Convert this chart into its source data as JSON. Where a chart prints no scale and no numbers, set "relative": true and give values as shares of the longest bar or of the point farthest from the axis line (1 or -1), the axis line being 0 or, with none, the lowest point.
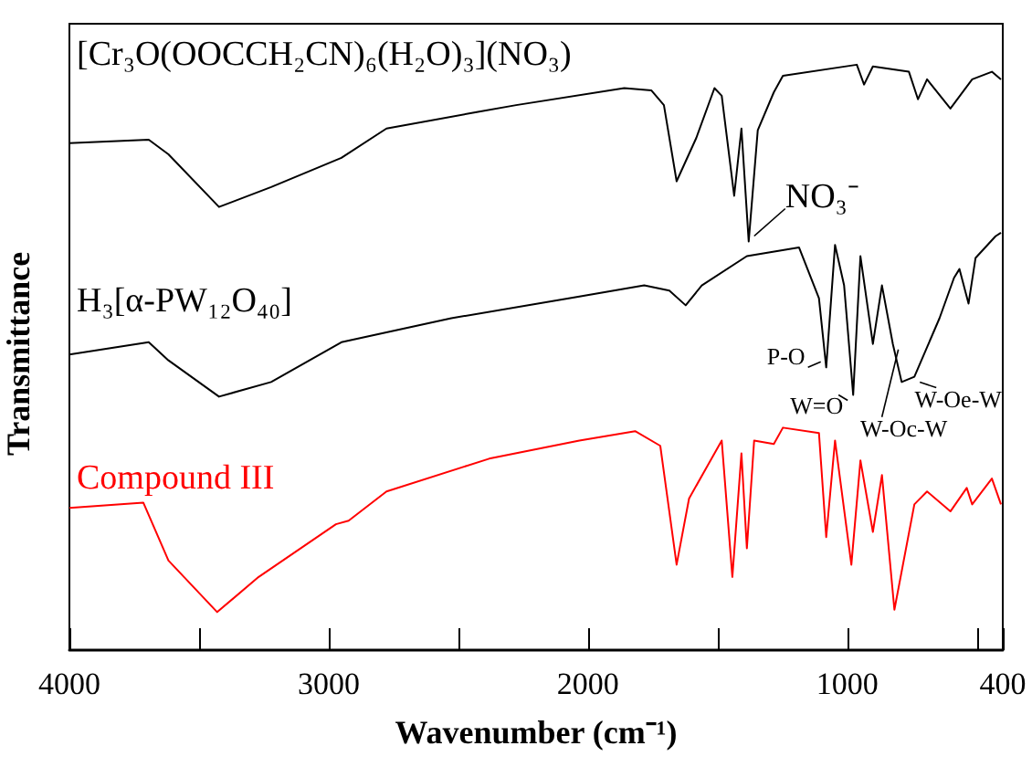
{
  "chart_data": {
    "type": "line",
    "relative": true,
    "xlabel": "Wavenumber (cm⁻¹)",
    "ylabel": "Transmittance",
    "xlim": [
      4000,
      400
    ],
    "xticks": [
      4000,
      {
        "value": 3500,
        "label": null
      },
      3000,
      {
        "value": 2500,
        "label": null
      },
      2000,
      {
        "value": 1500,
        "label": null
      },
      1000,
      {
        "value": 500,
        "label": null
      },
      400
    ],
    "grid": false,
    "marker": "none",
    "line_style": "solid",
    "series": [
      {
        "name": "[Cr₃O(OOCCH₂CN)₆(H₂O)₃](NO₃)",
        "color": "#000000",
        "x": [
          4000,
          3694,
          3618,
          3423,
          3222,
          2951,
          2777,
          2429,
          2277,
          1860,
          1755,
          1707,
          1658,
          1582,
          1512,
          1484,
          1436,
          1408,
          1380,
          1345,
          1283,
          1248,
          963,
          935,
          901,
          762,
          727,
          692,
          602,
          518,
          442,
          407
        ],
        "values": [
          0.866,
          0.872,
          0.847,
          0.757,
          0.791,
          0.841,
          0.891,
          0.919,
          0.931,
          0.96,
          0.956,
          0.931,
          0.801,
          0.875,
          0.96,
          0.947,
          0.776,
          0.891,
          0.698,
          0.888,
          0.953,
          0.981,
          1,
          0.966,
          0.997,
          0.988,
          0.941,
          0.975,
          0.925,
          0.975,
          0.988,
          0.975
        ]
      },
      {
        "name": "H₃[α-PW₁₂O₄₀]",
        "color": "#000000",
        "x": [
          4000,
          3694,
          3618,
          3423,
          3222,
          2951,
          2527,
          2033,
          1783,
          1686,
          1623,
          1561,
          1387,
          1186,
          1109,
          1081,
          1047,
          1012,
          977,
          949,
          901,
          866,
          824,
          790,
          741,
          644,
          588,
          567,
          532,
          505,
          428,
          407
        ],
        "values": [
          0.505,
          0.526,
          0.495,
          0.433,
          0.458,
          0.526,
          0.567,
          0.604,
          0.623,
          0.614,
          0.589,
          0.623,
          0.673,
          0.688,
          0.601,
          0.483,
          0.692,
          0.623,
          0.436,
          0.673,
          0.523,
          0.623,
          0.523,
          0.458,
          0.467,
          0.567,
          0.636,
          0.651,
          0.592,
          0.67,
          0.707,
          0.713
        ]
      },
      {
        "name": "Compound III",
        "color": "#ff0000",
        "x": [
          4000,
          3715,
          3618,
          3430,
          3270,
          2972,
          2923,
          2777,
          2381,
          2033,
          1818,
          1721,
          1658,
          1610,
          1484,
          1443,
          1408,
          1387,
          1359,
          1283,
          1248,
          1109,
          1081,
          1047,
          984,
          949,
          901,
          866,
          818,
          741,
          692,
          602,
          539,
          518,
          442,
          407
        ],
        "values": [
          0.243,
          0.252,
          0.153,
          0.065,
          0.125,
          0.215,
          0.221,
          0.271,
          0.327,
          0.358,
          0.374,
          0.349,
          0.146,
          0.259,
          0.358,
          0.125,
          0.336,
          0.174,
          0.358,
          0.352,
          0.38,
          0.371,
          0.193,
          0.358,
          0.146,
          0.324,
          0.202,
          0.299,
          0.069,
          0.249,
          0.271,
          0.237,
          0.277,
          0.249,
          0.293,
          0.249
        ]
      }
    ],
    "annotations": [
      {
        "text": "NO₃⁻",
        "x": 1380,
        "y": 0.698
      },
      {
        "text": "P-O",
        "x": 1081,
        "y": 0.483
      },
      {
        "text": "W=O",
        "x": 977,
        "y": 0.436
      },
      {
        "text": "W-Oc-W",
        "x": 824,
        "y": 0.523
      },
      {
        "text": "W-Oe-W",
        "x": 741,
        "y": 0.467
      }
    ]
  }
}
